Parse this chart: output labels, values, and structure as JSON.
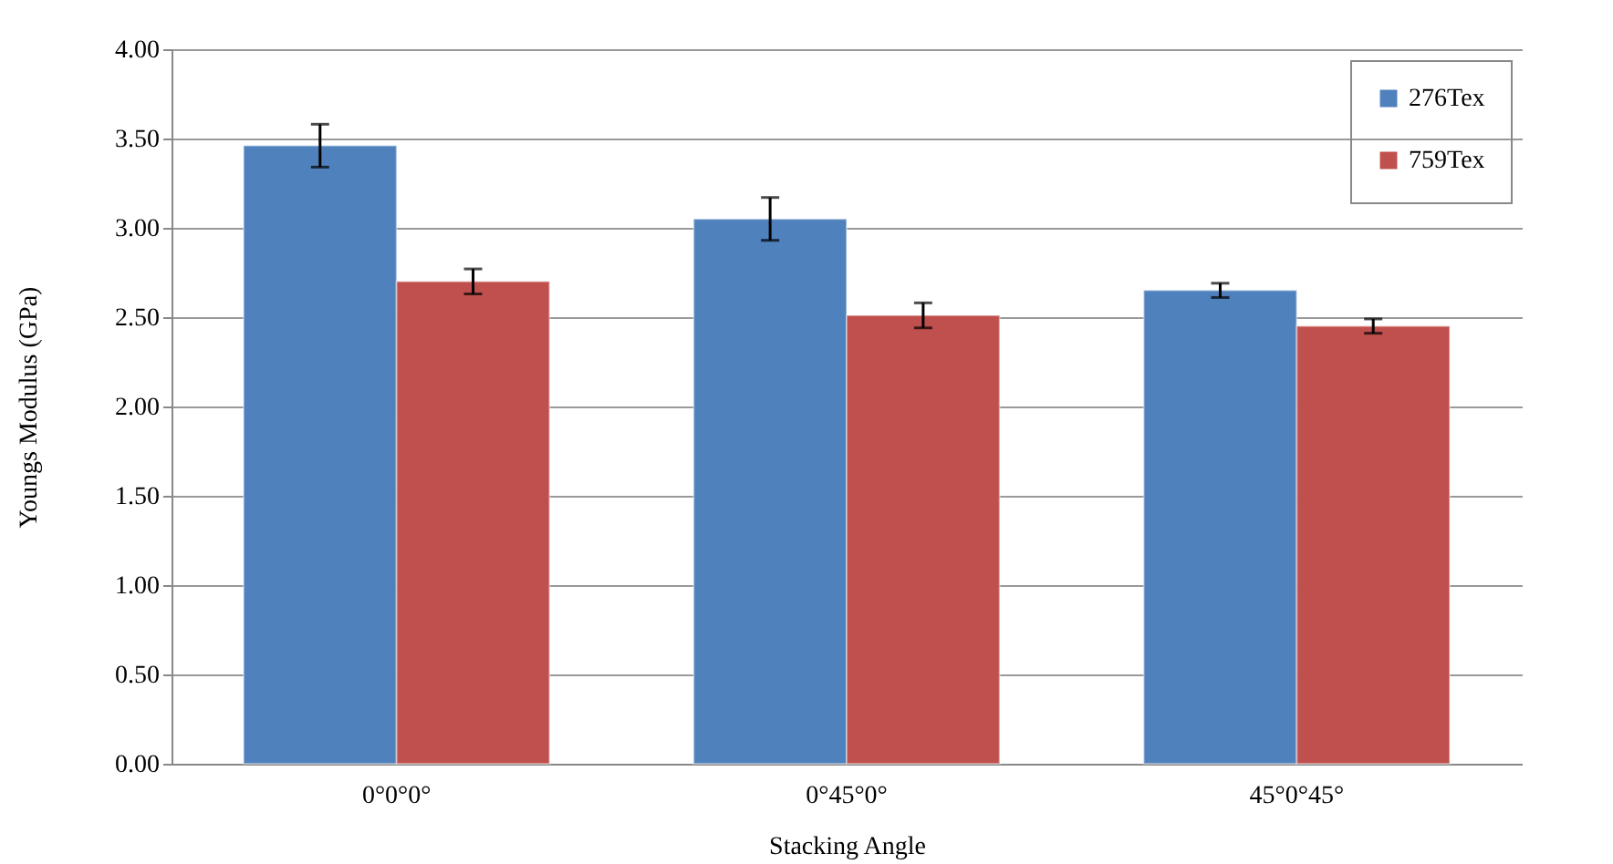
{
  "chart_data": {
    "type": "bar",
    "xlabel": "Stacking Angle",
    "ylabel": "Youngs Modulus (GPa)",
    "categories": [
      "0°0°0°",
      "0°45°0°",
      "45°0°45°"
    ],
    "series": [
      {
        "name": "276Tex",
        "color": "#4f81bd",
        "values": [
          3.46,
          3.05,
          2.65
        ],
        "errors": [
          0.12,
          0.12,
          0.04
        ]
      },
      {
        "name": "759Tex",
        "color": "#c0504d",
        "values": [
          2.7,
          2.51,
          2.45
        ],
        "errors": [
          0.07,
          0.07,
          0.04
        ]
      }
    ],
    "ylim": [
      0,
      4
    ],
    "yticks": [
      {
        "value": 0,
        "label": "0.00"
      },
      {
        "value": 0.5,
        "label": "0.50"
      },
      {
        "value": 1,
        "label": "1.00"
      },
      {
        "value": 1.5,
        "label": "1.50"
      },
      {
        "value": 2,
        "label": "2.00"
      },
      {
        "value": 2.5,
        "label": "2.50"
      },
      {
        "value": 3,
        "label": "3.00"
      },
      {
        "value": 3.5,
        "label": "3.50"
      },
      {
        "value": 4,
        "label": "4.00"
      }
    ],
    "grid": "y",
    "legend": "top right"
  }
}
